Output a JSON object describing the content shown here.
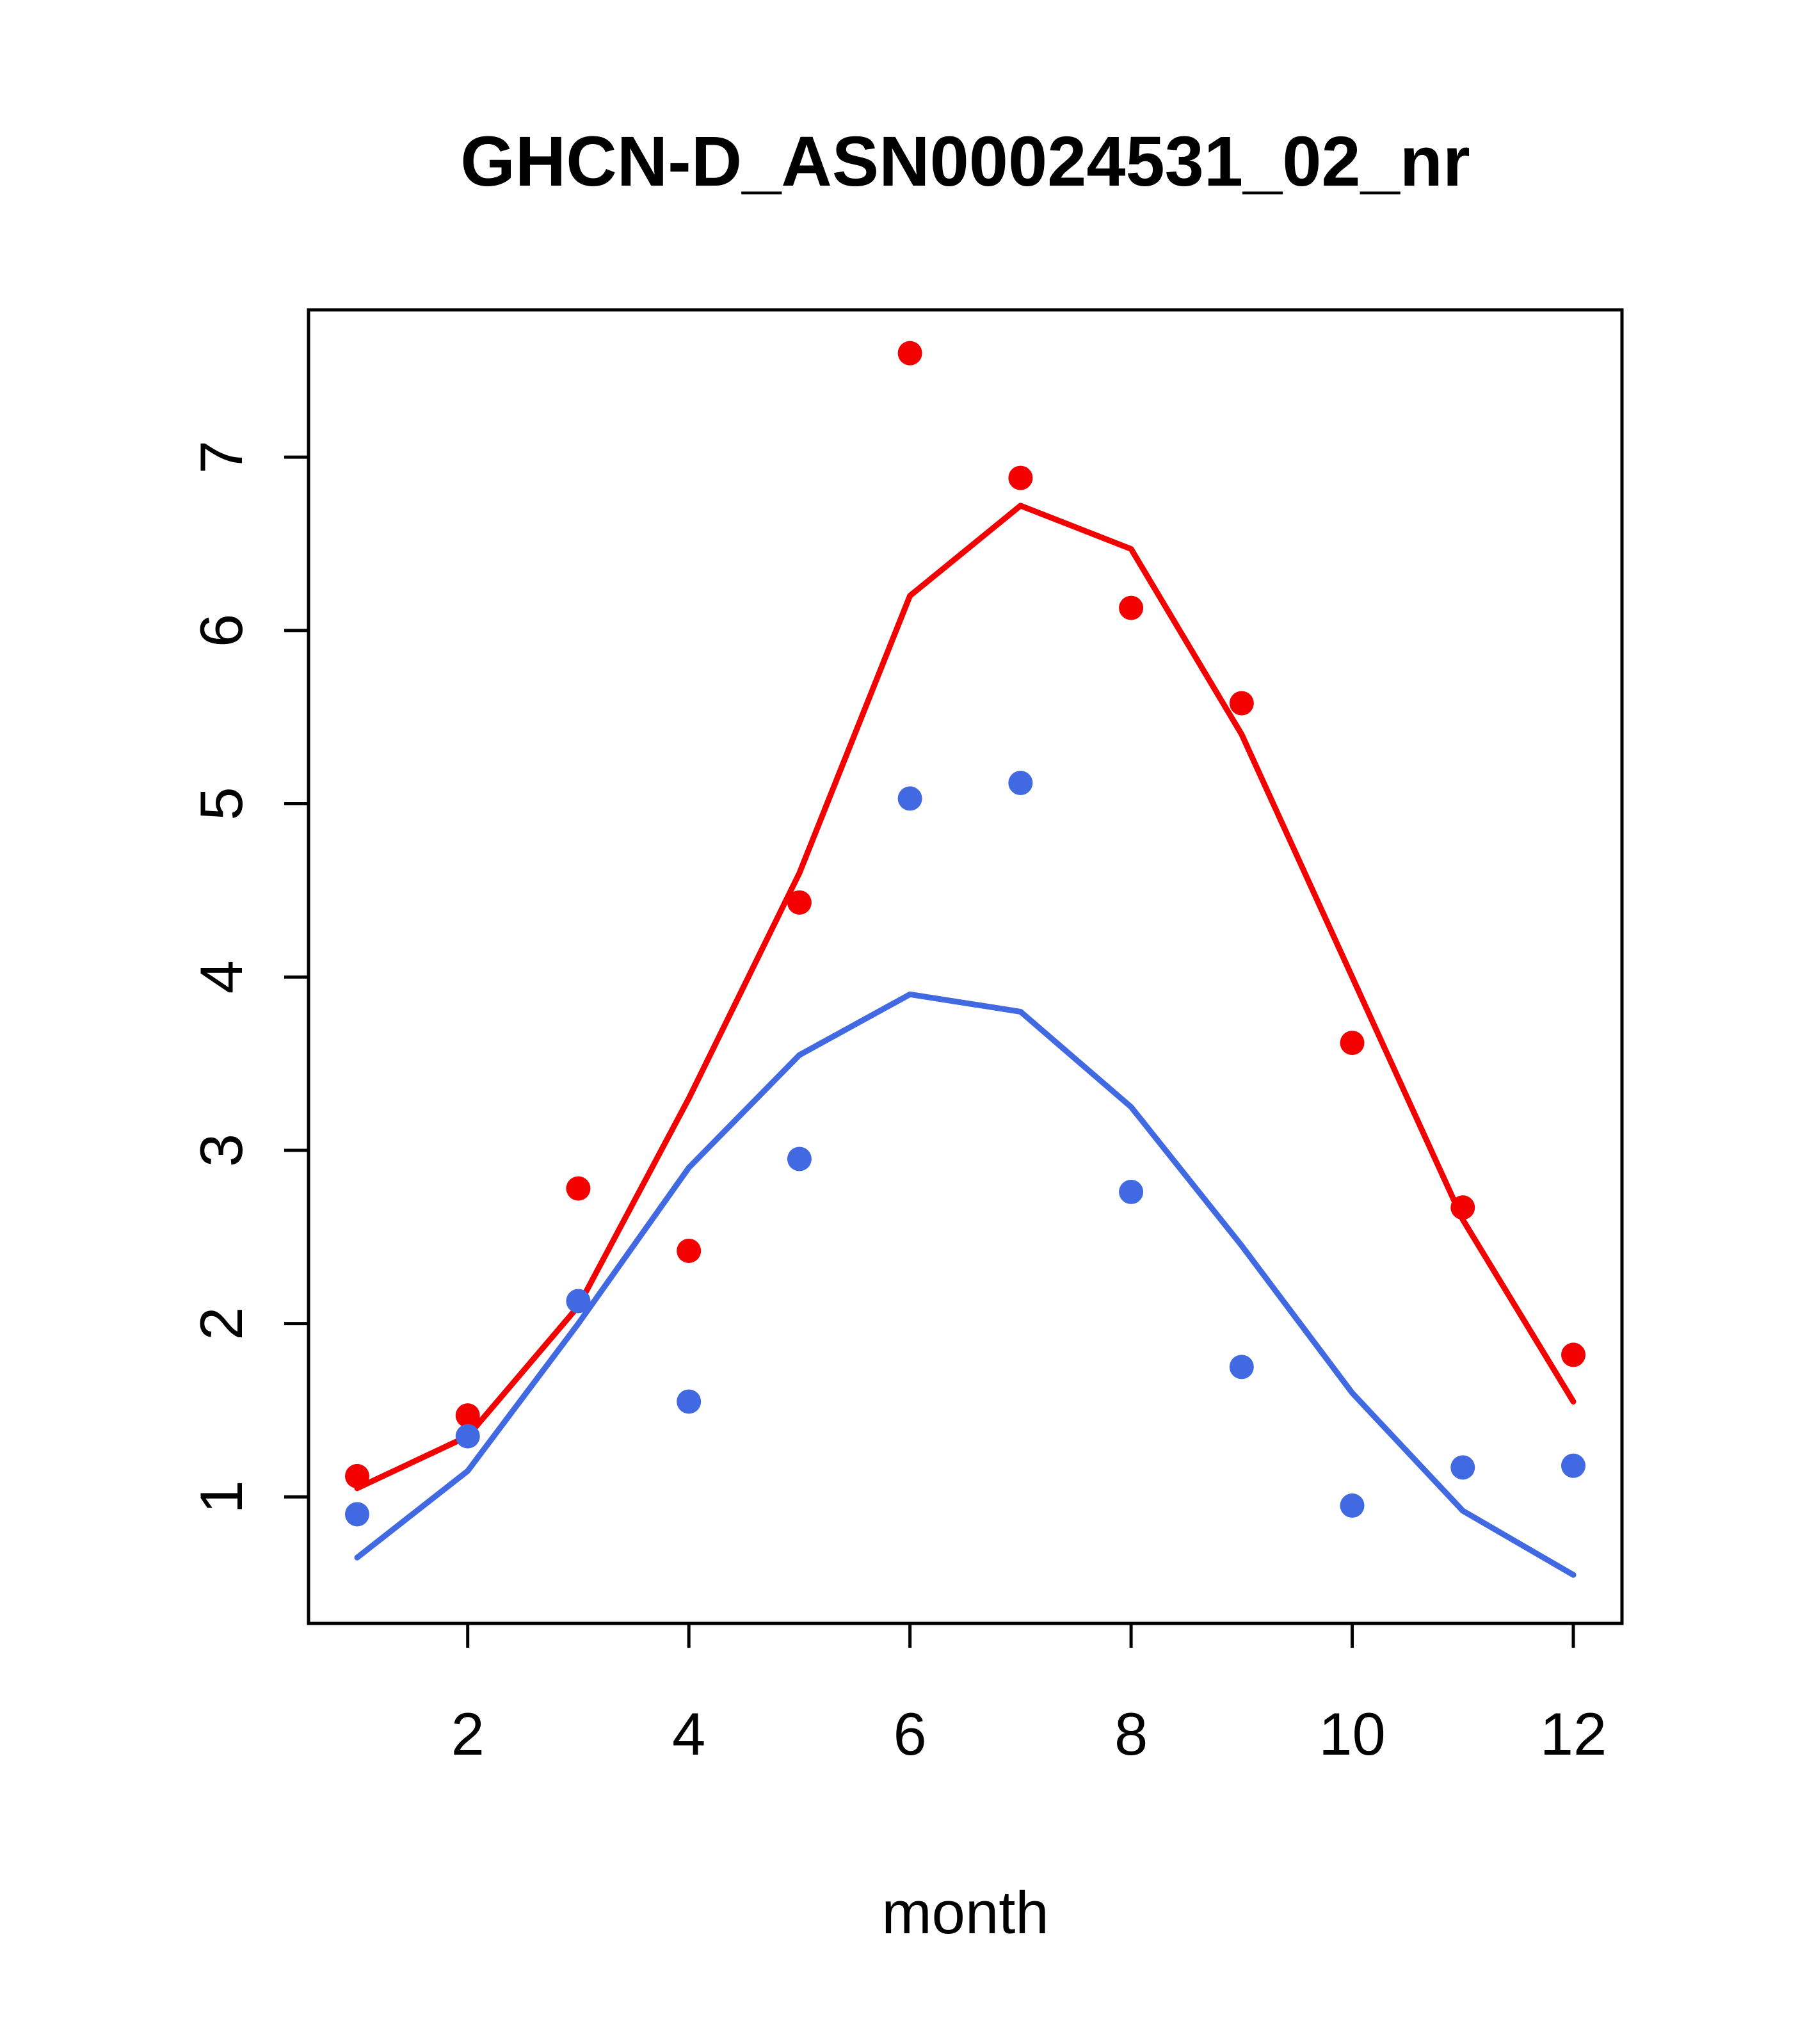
{
  "title": "GHCN-D_ASN00024531_02_nr",
  "chart_data": {
    "type": "line",
    "title": "GHCN-D_ASN00024531_02_nr",
    "xlabel": "month",
    "ylabel": "",
    "x": [
      1,
      2,
      3,
      4,
      5,
      6,
      7,
      8,
      9,
      10,
      11,
      12
    ],
    "xticks": [
      2,
      4,
      6,
      8,
      10,
      12
    ],
    "yticks": [
      1,
      2,
      3,
      4,
      5,
      6,
      7
    ],
    "xlim": [
      0.56,
      12.44
    ],
    "ylim": [
      0.27,
      7.85
    ],
    "grid": false,
    "legend": "none",
    "colors": {
      "red": "#f30000",
      "blue": "#4169e1"
    },
    "series": [
      {
        "name": "red-points",
        "style": "points",
        "color": "#f30000",
        "values": [
          1.12,
          1.47,
          2.78,
          2.42,
          4.43,
          7.6,
          6.88,
          6.13,
          5.58,
          3.62,
          2.67,
          1.82
        ]
      },
      {
        "name": "red-line",
        "style": "line",
        "color": "#f30000",
        "values": [
          1.05,
          1.35,
          2.1,
          3.3,
          4.6,
          6.2,
          6.72,
          6.47,
          5.4,
          4.0,
          2.6,
          1.55
        ]
      },
      {
        "name": "blue-points",
        "style": "points",
        "color": "#4169e1",
        "values": [
          0.9,
          1.35,
          2.13,
          1.55,
          2.95,
          5.03,
          5.12,
          2.76,
          1.75,
          0.95,
          1.17,
          1.18
        ]
      },
      {
        "name": "blue-line",
        "style": "line",
        "color": "#4169e1",
        "values": [
          0.65,
          1.15,
          2.0,
          2.9,
          3.55,
          3.9,
          3.8,
          3.25,
          2.45,
          1.6,
          0.92,
          0.55
        ]
      }
    ]
  }
}
